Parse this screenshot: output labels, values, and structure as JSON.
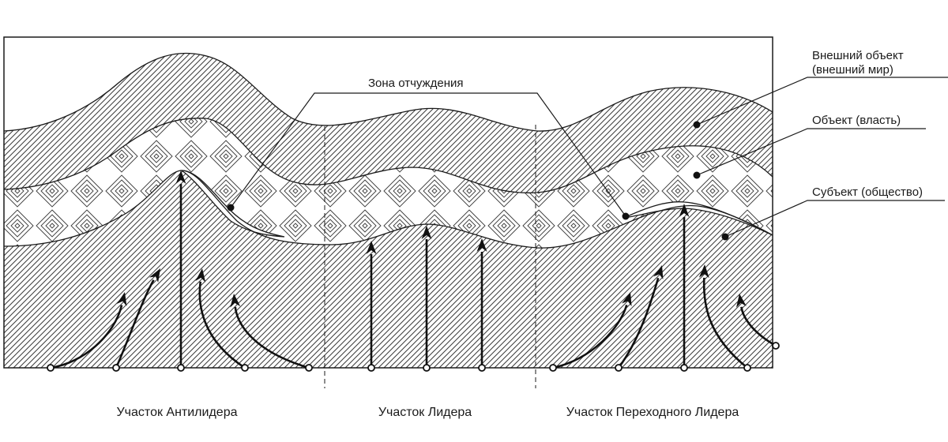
{
  "diagram": {
    "zone_label": "Зона отчуждения",
    "legend": {
      "external_line1": "Внешний объект",
      "external_line2": "(внешний мир)",
      "object": "Объект (власть)",
      "subject": "Субъект (общество)"
    },
    "sections": [
      "Участок Антилидера",
      "Участок Лидера",
      "Участок Переходного Лидера"
    ]
  }
}
